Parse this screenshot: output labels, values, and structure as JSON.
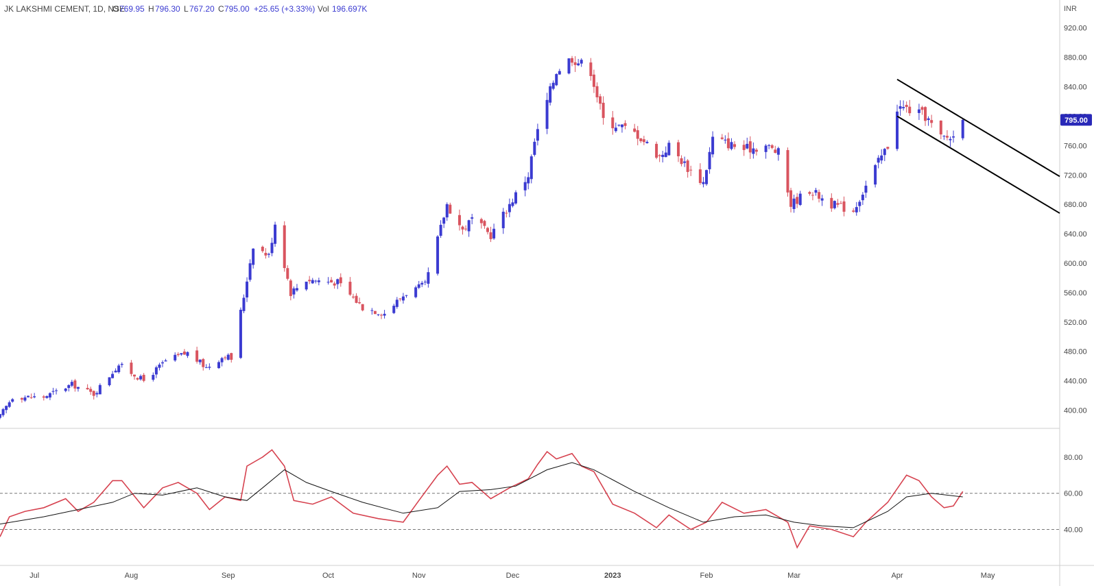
{
  "header": {
    "symbol": "JK LAKSHMI CEMENT, 1D, NSE",
    "open_label": "O",
    "open": "769.95",
    "high_label": "H",
    "high": "796.30",
    "low_label": "L",
    "low": "767.20",
    "close_label": "C",
    "close": "795.00",
    "change": "+25.65 (+3.33%)",
    "vol_label": "Vol",
    "volume": "196.697K"
  },
  "colors": {
    "up": "#3b3bd1",
    "down": "#d9545f",
    "rsi": "#d6424f",
    "rsi_ma": "#111111",
    "trendline": "#000000",
    "grid_border": "#dddddd",
    "price_badge": "#2929b8"
  },
  "chart_data": [
    {
      "type": "candlestick",
      "currency": "INR",
      "last_price_label": "795.00",
      "ylim": [
        380,
        930
      ],
      "y_ticks": [
        "920.00",
        "880.00",
        "840.00",
        "800.00",
        "760.00",
        "720.00",
        "680.00",
        "640.00",
        "600.00",
        "560.00",
        "520.00",
        "480.00",
        "440.00",
        "400.00"
      ],
      "x_ticks": [
        "Jul",
        "Aug",
        "Sep",
        "Oct",
        "Nov",
        "Dec",
        "2023",
        "Feb",
        "Mar",
        "Apr",
        "May"
      ],
      "x_tick_dates": [
        "2022-07-01",
        "2022-08-01",
        "2022-09-01",
        "2022-10-03",
        "2022-11-01",
        "2022-12-01",
        "2023-01-02",
        "2023-02-01",
        "2023-03-01",
        "2023-04-03",
        "2023-05-02"
      ],
      "x_range": [
        "2022-06-20",
        "2023-05-25"
      ],
      "anchors": [
        [
          "2022-06-20",
          392
        ],
        [
          "2022-06-24",
          418
        ],
        [
          "2022-07-04",
          418
        ],
        [
          "2022-07-13",
          435
        ],
        [
          "2022-07-20",
          422
        ],
        [
          "2022-07-28",
          462
        ],
        [
          "2022-08-05",
          440
        ],
        [
          "2022-08-12",
          467
        ],
        [
          "2022-08-19",
          478
        ],
        [
          "2022-08-25",
          458
        ],
        [
          "2022-08-31",
          475
        ],
        [
          "2022-09-02",
          470
        ],
        [
          "2022-09-06",
          555
        ],
        [
          "2022-09-09",
          625
        ],
        [
          "2022-09-14",
          610
        ],
        [
          "2022-09-16",
          655
        ],
        [
          "2022-09-21",
          560
        ],
        [
          "2022-09-26",
          578
        ],
        [
          "2022-10-06",
          574
        ],
        [
          "2022-10-14",
          540
        ],
        [
          "2022-10-21",
          532
        ],
        [
          "2022-10-28",
          560
        ],
        [
          "2022-11-03",
          570
        ],
        [
          "2022-11-07",
          632
        ],
        [
          "2022-11-10",
          680
        ],
        [
          "2022-11-15",
          645
        ],
        [
          "2022-11-18",
          660
        ],
        [
          "2022-11-24",
          638
        ],
        [
          "2022-11-30",
          680
        ],
        [
          "2022-12-06",
          720
        ],
        [
          "2022-12-08",
          765
        ],
        [
          "2022-12-12",
          820
        ],
        [
          "2022-12-15",
          862
        ],
        [
          "2022-12-20",
          880
        ],
        [
          "2022-12-26",
          862
        ],
        [
          "2022-12-30",
          795
        ],
        [
          "2023-01-05",
          785
        ],
        [
          "2023-01-10",
          775
        ],
        [
          "2023-01-17",
          745
        ],
        [
          "2023-01-20",
          760
        ],
        [
          "2023-01-27",
          725
        ],
        [
          "2023-01-31",
          710
        ],
        [
          "2023-02-03",
          770
        ],
        [
          "2023-02-13",
          755
        ],
        [
          "2023-02-20",
          760
        ],
        [
          "2023-02-24",
          750
        ],
        [
          "2023-02-28",
          680
        ],
        [
          "2023-03-06",
          700
        ],
        [
          "2023-03-13",
          680
        ],
        [
          "2023-03-20",
          672
        ],
        [
          "2023-03-27",
          730
        ],
        [
          "2023-03-31",
          760
        ],
        [
          "2023-04-03",
          812
        ],
        [
          "2023-04-06",
          810
        ],
        [
          "2023-04-12",
          800
        ],
        [
          "2023-04-17",
          770
        ],
        [
          "2023-04-21",
          772
        ],
        [
          "2023-04-24",
          795
        ]
      ],
      "last_candle": {
        "date": "2023-04-24",
        "open": 769.95,
        "high": 796.3,
        "low": 767.2,
        "close": 795.0
      },
      "channel_lines": [
        [
          [
            "2023-04-03",
            850
          ],
          [
            "2023-05-25",
            718
          ]
        ],
        [
          [
            "2023-04-03",
            800
          ],
          [
            "2023-05-25",
            668
          ]
        ]
      ]
    },
    {
      "type": "line",
      "panel": "RSI",
      "ylim": [
        22,
        94
      ],
      "y_ticks": [
        "80.00",
        "60.00",
        "40.00"
      ],
      "reference_lines": [
        60,
        40
      ],
      "rsi_points": [
        [
          "2022-06-20",
          36
        ],
        [
          "2022-06-23",
          47
        ],
        [
          "2022-06-28",
          50
        ],
        [
          "2022-07-04",
          52
        ],
        [
          "2022-07-11",
          57
        ],
        [
          "2022-07-15",
          50
        ],
        [
          "2022-07-20",
          55
        ],
        [
          "2022-07-26",
          67
        ],
        [
          "2022-07-29",
          67
        ],
        [
          "2022-08-05",
          52
        ],
        [
          "2022-08-11",
          63
        ],
        [
          "2022-08-16",
          66
        ],
        [
          "2022-08-22",
          60
        ],
        [
          "2022-08-26",
          51
        ],
        [
          "2022-08-31",
          58
        ],
        [
          "2022-09-05",
          56
        ],
        [
          "2022-09-07",
          75
        ],
        [
          "2022-09-12",
          80
        ],
        [
          "2022-09-15",
          84
        ],
        [
          "2022-09-19",
          75
        ],
        [
          "2022-09-22",
          56
        ],
        [
          "2022-09-28",
          54
        ],
        [
          "2022-10-04",
          58
        ],
        [
          "2022-10-11",
          49
        ],
        [
          "2022-10-19",
          46
        ],
        [
          "2022-10-27",
          44
        ],
        [
          "2022-11-01",
          56
        ],
        [
          "2022-11-07",
          70
        ],
        [
          "2022-11-10",
          75
        ],
        [
          "2022-11-14",
          65
        ],
        [
          "2022-11-18",
          66
        ],
        [
          "2022-11-24",
          57
        ],
        [
          "2022-11-30",
          63
        ],
        [
          "2022-12-06",
          68
        ],
        [
          "2022-12-09",
          76
        ],
        [
          "2022-12-12",
          83
        ],
        [
          "2022-12-15",
          79
        ],
        [
          "2022-12-20",
          82
        ],
        [
          "2022-12-23",
          75
        ],
        [
          "2022-12-27",
          72
        ],
        [
          "2023-01-02",
          54
        ],
        [
          "2023-01-09",
          49
        ],
        [
          "2023-01-16",
          41
        ],
        [
          "2023-01-20",
          48
        ],
        [
          "2023-01-27",
          40
        ],
        [
          "2023-02-01",
          44
        ],
        [
          "2023-02-06",
          55
        ],
        [
          "2023-02-13",
          49
        ],
        [
          "2023-02-20",
          51
        ],
        [
          "2023-02-27",
          44
        ],
        [
          "2023-03-02",
          30
        ],
        [
          "2023-03-06",
          42
        ],
        [
          "2023-03-13",
          40
        ],
        [
          "2023-03-20",
          36
        ],
        [
          "2023-03-24",
          44
        ],
        [
          "2023-03-31",
          55
        ],
        [
          "2023-04-06",
          70
        ],
        [
          "2023-04-10",
          67
        ],
        [
          "2023-04-14",
          58
        ],
        [
          "2023-04-18",
          52
        ],
        [
          "2023-04-21",
          53
        ],
        [
          "2023-04-24",
          61
        ]
      ],
      "ma_points": [
        [
          "2022-06-20",
          43
        ],
        [
          "2022-07-04",
          47
        ],
        [
          "2022-07-15",
          51
        ],
        [
          "2022-07-26",
          55
        ],
        [
          "2022-08-02",
          60
        ],
        [
          "2022-08-11",
          59
        ],
        [
          "2022-08-22",
          63
        ],
        [
          "2022-08-31",
          58
        ],
        [
          "2022-09-07",
          56
        ],
        [
          "2022-09-12",
          63
        ],
        [
          "2022-09-19",
          73
        ],
        [
          "2022-09-26",
          66
        ],
        [
          "2022-10-04",
          61
        ],
        [
          "2022-10-14",
          55
        ],
        [
          "2022-10-27",
          49
        ],
        [
          "2022-11-07",
          52
        ],
        [
          "2022-11-14",
          61
        ],
        [
          "2022-11-24",
          62
        ],
        [
          "2022-12-02",
          64
        ],
        [
          "2022-12-12",
          73
        ],
        [
          "2022-12-20",
          77
        ],
        [
          "2022-12-27",
          73
        ],
        [
          "2023-01-09",
          61
        ],
        [
          "2023-01-20",
          52
        ],
        [
          "2023-01-31",
          44
        ],
        [
          "2023-02-10",
          47
        ],
        [
          "2023-02-20",
          48
        ],
        [
          "2023-03-01",
          44
        ],
        [
          "2023-03-10",
          42
        ],
        [
          "2023-03-20",
          41
        ],
        [
          "2023-03-31",
          50
        ],
        [
          "2023-04-06",
          58
        ],
        [
          "2023-04-14",
          60
        ],
        [
          "2023-04-24",
          58
        ]
      ]
    }
  ]
}
